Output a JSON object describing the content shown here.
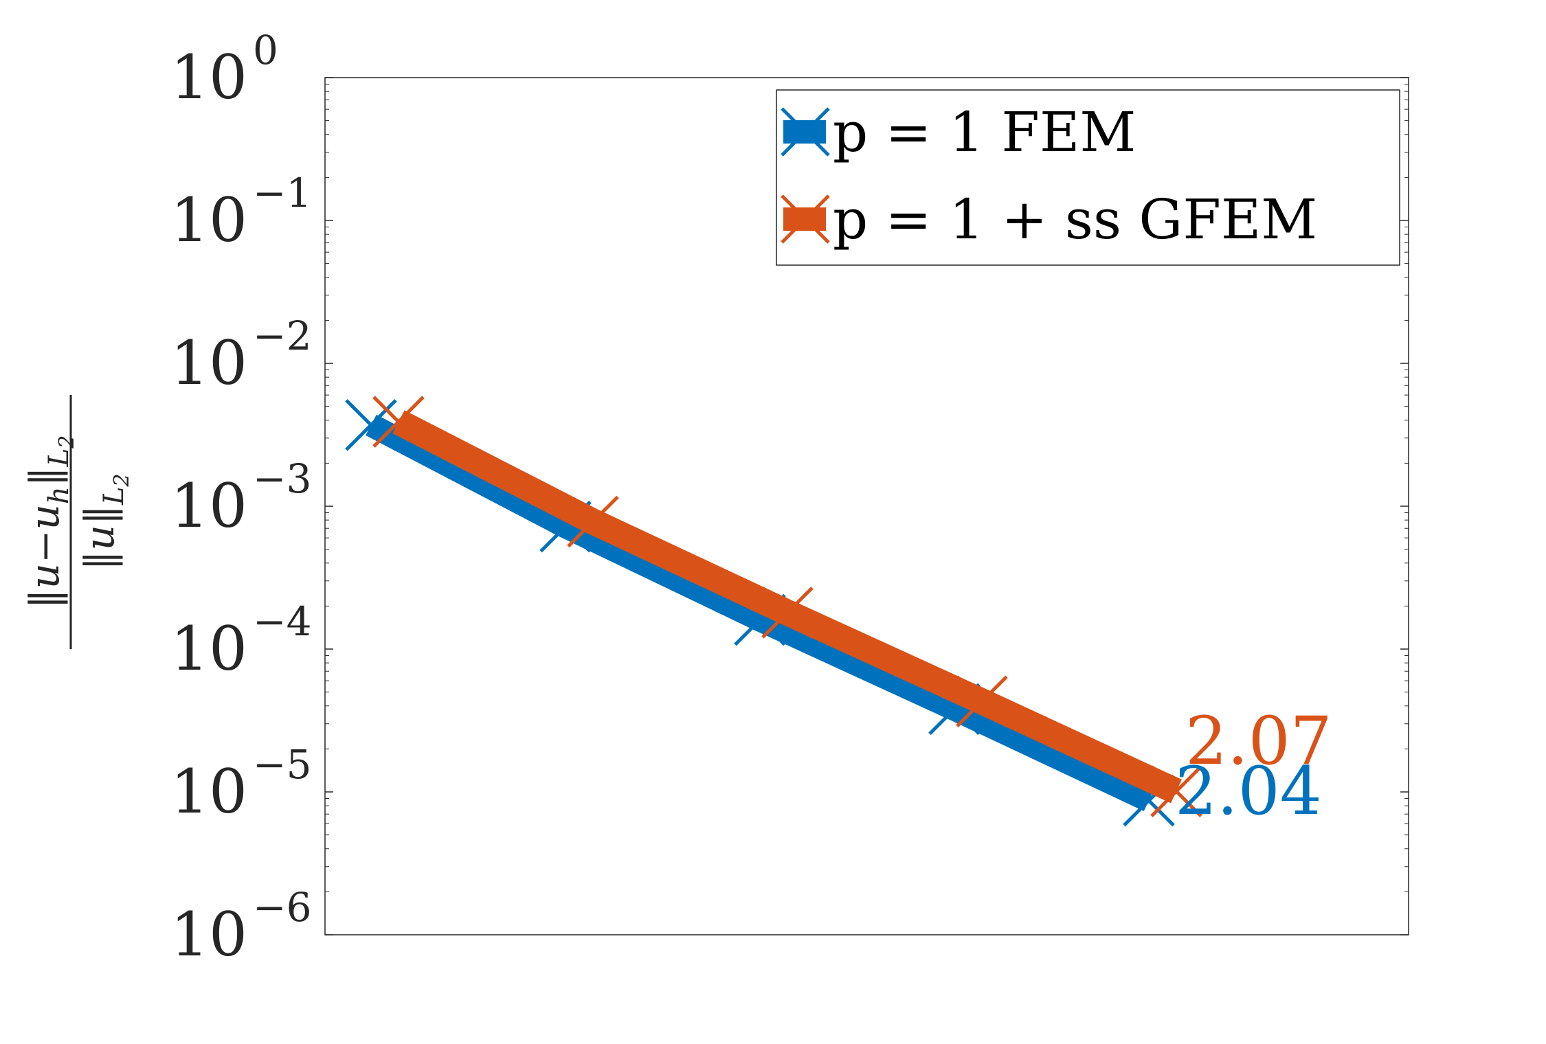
{
  "chart_data": {
    "type": "line",
    "title": "",
    "xlabel": "",
    "ylabel": "‖u−u_h‖_L2 / ‖u‖_L2",
    "yscale": "log",
    "ylim": [
      1e-06,
      1
    ],
    "yticks": [
      {
        "value": 1,
        "base": "10",
        "exp": "0"
      },
      {
        "value": 0.1,
        "base": "10",
        "exp": "−1"
      },
      {
        "value": 0.01,
        "base": "10",
        "exp": "−2"
      },
      {
        "value": 0.001,
        "base": "10",
        "exp": "−3"
      },
      {
        "value": 0.0001,
        "base": "10",
        "exp": "−4"
      },
      {
        "value": 1e-05,
        "base": "10",
        "exp": "−5"
      },
      {
        "value": 1e-06,
        "base": "10",
        "exp": "−6"
      }
    ],
    "xscale": "log",
    "xticks": [],
    "grid": false,
    "legend_position": "top-right",
    "series": [
      {
        "name": "p = 1 FEM",
        "color": "#0072BD",
        "marker": "x",
        "x_rel": [
          1,
          2,
          4,
          8,
          16
        ],
        "y": [
          0.0037,
          0.00072,
          0.00016,
          3.8e-05,
          8.7e-06
        ],
        "slope_label": "2.04"
      },
      {
        "name": "p = 1 + ss GFEM",
        "color": "#D95319",
        "marker": "x",
        "x_rel": [
          1,
          2,
          4,
          8,
          16
        ],
        "y": [
          0.0039,
          0.00078,
          0.00018,
          4.3e-05,
          1.01e-05
        ],
        "slope_label": "2.07"
      }
    ]
  }
}
